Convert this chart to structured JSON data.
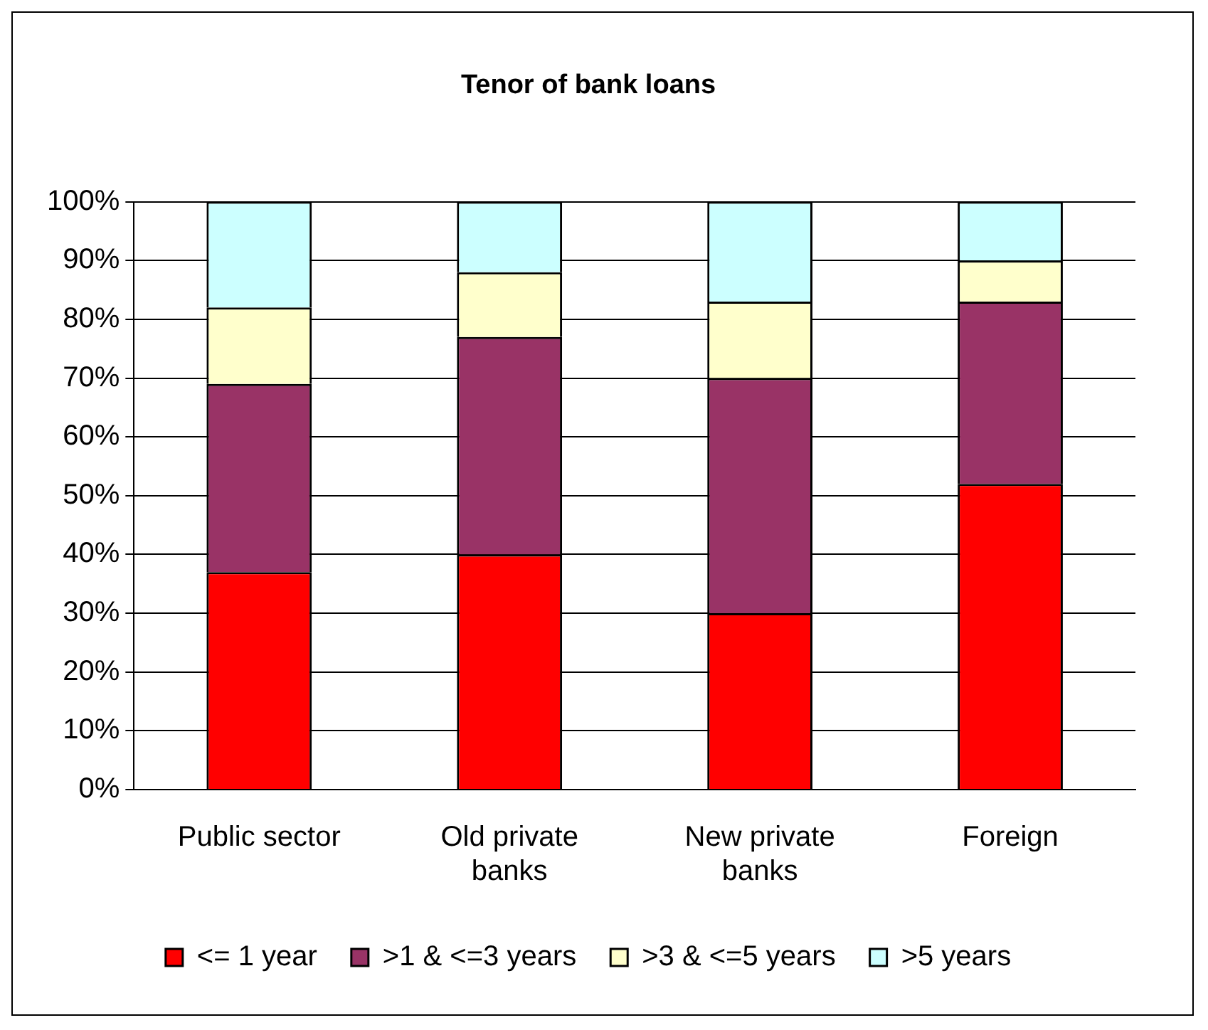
{
  "chart_data": {
    "type": "bar",
    "title": "Tenor of bank loans",
    "stacked": true,
    "categories": [
      "Public sector",
      "Old private banks",
      "New private banks",
      "Foreign"
    ],
    "series": [
      {
        "name": "<= 1 year",
        "color": "#ff0000",
        "values": [
          37,
          40,
          30,
          52
        ]
      },
      {
        "name": ">1 & <=3 years",
        "color": "#993366",
        "values": [
          32,
          37,
          40,
          31
        ]
      },
      {
        "name": ">3 & <=5 years",
        "color": "#ffffcc",
        "values": [
          13,
          11,
          13,
          7
        ]
      },
      {
        "name": ">5 years",
        "color": "#ccffff",
        "values": [
          18,
          12,
          17,
          10
        ]
      }
    ],
    "ylim": [
      0,
      100
    ],
    "yticks": [
      {
        "value": 0,
        "label": "0%"
      },
      {
        "value": 10,
        "label": "10%"
      },
      {
        "value": 20,
        "label": "20%"
      },
      {
        "value": 30,
        "label": "30%"
      },
      {
        "value": 40,
        "label": "40%"
      },
      {
        "value": 50,
        "label": "50%"
      },
      {
        "value": 60,
        "label": "60%"
      },
      {
        "value": 70,
        "label": "70%"
      },
      {
        "value": 80,
        "label": "80%"
      },
      {
        "value": 90,
        "label": "90%"
      },
      {
        "value": 100,
        "label": "100%"
      }
    ],
    "grid": "y",
    "legend": "bottom"
  }
}
